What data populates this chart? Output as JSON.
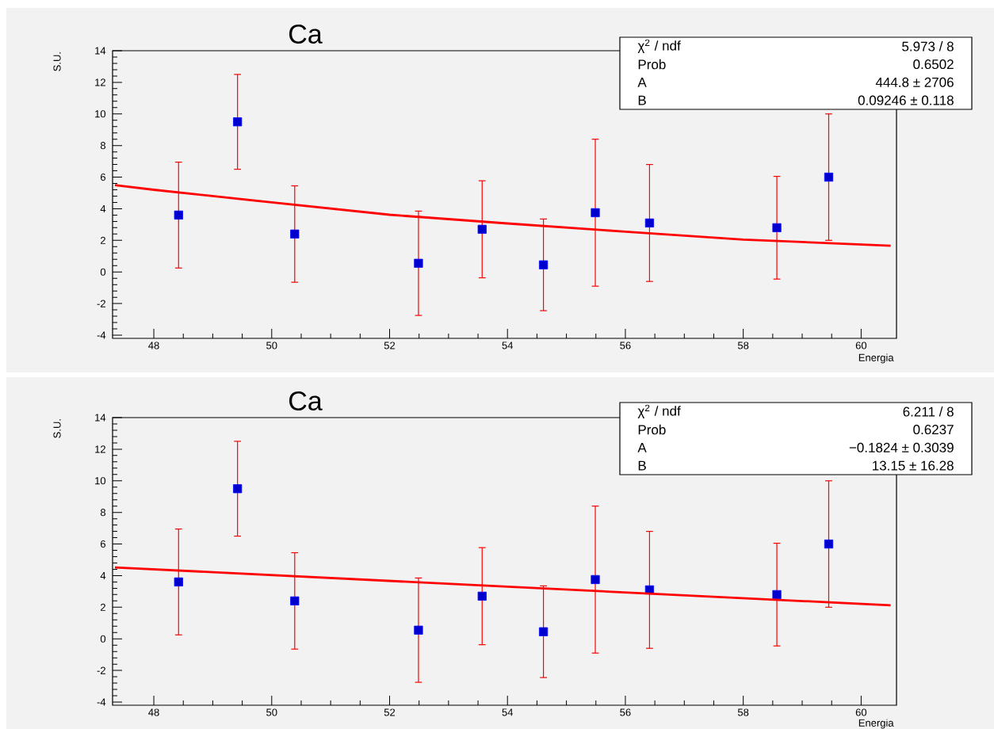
{
  "chart_data": [
    {
      "type": "scatter",
      "title": "Ca",
      "xlabel": "Energia",
      "ylabel": "S.U.",
      "xlim": [
        47.3,
        60.6
      ],
      "ylim": [
        -4.2,
        14
      ],
      "xticks": [
        48,
        50,
        52,
        54,
        56,
        58,
        60
      ],
      "yticks": [
        -4,
        -2,
        0,
        2,
        4,
        6,
        8,
        10,
        12,
        14
      ],
      "annotations": [
        "χ$^{2}$ / ndf",
        "5.973 / 8",
        "Prob",
        "0.6502",
        "A",
        "444.8 ±  2706",
        "B",
        "0.09246 ± 0.118"
      ],
      "x": [
        48.42,
        49.42,
        50.39,
        52.49,
        53.57,
        54.61,
        55.49,
        56.41,
        58.57,
        59.45
      ],
      "series": [
        {
          "marker": "square",
          "color": "#0000ff",
          "values": [
            3.6,
            9.5,
            2.4,
            0.55,
            2.7,
            0.45,
            3.75,
            3.1,
            2.8,
            6.0
          ],
          "errors": [
            3.35,
            3.0,
            3.05,
            3.3,
            3.07,
            2.9,
            4.65,
            3.7,
            3.25,
            4.0
          ]
        },
        {
          "type": "line",
          "marker": "none",
          "color": "#ff0000",
          "x": [
            47.34,
            48,
            50,
            52,
            54,
            56,
            58,
            60.5
          ],
          "values": [
            5.5,
            5.2,
            4.4,
            3.62,
            3.07,
            2.55,
            2.05,
            1.66
          ]
        }
      ]
    },
    {
      "type": "scatter",
      "title": "Ca",
      "xlabel": "Energia",
      "ylabel": "S.U.",
      "xlim": [
        47.3,
        60.6
      ],
      "ylim": [
        -4.2,
        14
      ],
      "xticks": [
        48,
        50,
        52,
        54,
        56,
        58,
        60
      ],
      "yticks": [
        -4,
        -2,
        0,
        2,
        4,
        6,
        8,
        10,
        12,
        14
      ],
      "annotations": [
        "χ$^{2}$ / ndf",
        "6.211 / 8",
        "Prob",
        "0.6237",
        "A",
        "−0.1824 ± 0.3039",
        "B",
        "13.15 ± 16.28"
      ],
      "x": [
        48.42,
        49.42,
        50.39,
        52.49,
        53.57,
        54.61,
        55.49,
        56.41,
        58.57,
        59.45
      ],
      "series": [
        {
          "marker": "square",
          "color": "#0000ff",
          "values": [
            3.6,
            9.5,
            2.4,
            0.55,
            2.7,
            0.45,
            3.75,
            3.1,
            2.8,
            6.0
          ],
          "errors": [
            3.35,
            3.0,
            3.05,
            3.3,
            3.07,
            2.9,
            4.65,
            3.7,
            3.25,
            4.0
          ]
        },
        {
          "type": "line",
          "marker": "none",
          "color": "#ff0000",
          "x": [
            47.34,
            54,
            60.5
          ],
          "values": [
            4.52,
            3.3,
            2.12
          ]
        }
      ]
    }
  ]
}
